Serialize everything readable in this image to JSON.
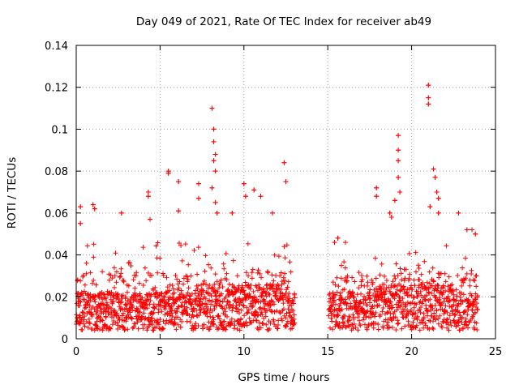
{
  "chart_data": {
    "type": "scatter",
    "title": "Day 049 of 2021, Rate Of TEC Index for receiver ab49",
    "xlabel": "GPS time / hours",
    "ylabel": "ROTI / TECUs",
    "xlim": [
      0,
      25
    ],
    "ylim": [
      0,
      0.14
    ],
    "x_ticks": [
      0,
      5,
      10,
      15,
      20,
      25
    ],
    "x_tick_labels": [
      "0",
      "5",
      "10",
      "15",
      "20",
      "25"
    ],
    "y_ticks": [
      0,
      0.02,
      0.04,
      0.06,
      0.08,
      0.1,
      0.12,
      0.14
    ],
    "y_tick_labels": [
      "0",
      "0.02",
      "0.04",
      "0.06",
      "0.08",
      "0.1",
      "0.12",
      "0.14"
    ],
    "grid": true,
    "marker": "+",
    "series": [
      {
        "name": "ROTI",
        "color": "#ff0000",
        "data_gap_hours": [
          13.05,
          15.05
        ],
        "notable_points": [
          {
            "x": 0.25,
            "y": 0.063
          },
          {
            "x": 0.25,
            "y": 0.055
          },
          {
            "x": 1.0,
            "y": 0.064
          },
          {
            "x": 1.1,
            "y": 0.062
          },
          {
            "x": 2.7,
            "y": 0.06
          },
          {
            "x": 4.3,
            "y": 0.07
          },
          {
            "x": 4.3,
            "y": 0.068
          },
          {
            "x": 4.4,
            "y": 0.057
          },
          {
            "x": 5.5,
            "y": 0.08
          },
          {
            "x": 5.5,
            "y": 0.079
          },
          {
            "x": 6.1,
            "y": 0.075
          },
          {
            "x": 6.1,
            "y": 0.061
          },
          {
            "x": 7.3,
            "y": 0.074
          },
          {
            "x": 7.3,
            "y": 0.067
          },
          {
            "x": 8.1,
            "y": 0.11
          },
          {
            "x": 8.2,
            "y": 0.1
          },
          {
            "x": 8.2,
            "y": 0.094
          },
          {
            "x": 8.3,
            "y": 0.088
          },
          {
            "x": 8.2,
            "y": 0.085
          },
          {
            "x": 8.3,
            "y": 0.08
          },
          {
            "x": 8.1,
            "y": 0.072
          },
          {
            "x": 8.3,
            "y": 0.065
          },
          {
            "x": 8.4,
            "y": 0.06
          },
          {
            "x": 9.3,
            "y": 0.06
          },
          {
            "x": 10.0,
            "y": 0.074
          },
          {
            "x": 10.1,
            "y": 0.068
          },
          {
            "x": 10.6,
            "y": 0.071
          },
          {
            "x": 11.0,
            "y": 0.068
          },
          {
            "x": 11.7,
            "y": 0.06
          },
          {
            "x": 12.4,
            "y": 0.084
          },
          {
            "x": 12.5,
            "y": 0.075
          },
          {
            "x": 15.4,
            "y": 0.046
          },
          {
            "x": 15.6,
            "y": 0.048
          },
          {
            "x": 17.9,
            "y": 0.072
          },
          {
            "x": 17.9,
            "y": 0.068
          },
          {
            "x": 18.7,
            "y": 0.06
          },
          {
            "x": 18.8,
            "y": 0.058
          },
          {
            "x": 19.2,
            "y": 0.097
          },
          {
            "x": 19.2,
            "y": 0.09
          },
          {
            "x": 19.2,
            "y": 0.085
          },
          {
            "x": 19.2,
            "y": 0.077
          },
          {
            "x": 19.3,
            "y": 0.07
          },
          {
            "x": 19.0,
            "y": 0.066
          },
          {
            "x": 21.0,
            "y": 0.121
          },
          {
            "x": 21.0,
            "y": 0.115
          },
          {
            "x": 21.0,
            "y": 0.112
          },
          {
            "x": 21.3,
            "y": 0.081
          },
          {
            "x": 21.4,
            "y": 0.077
          },
          {
            "x": 21.5,
            "y": 0.07
          },
          {
            "x": 21.6,
            "y": 0.067
          },
          {
            "x": 21.1,
            "y": 0.063
          },
          {
            "x": 21.6,
            "y": 0.06
          },
          {
            "x": 22.8,
            "y": 0.06
          },
          {
            "x": 23.3,
            "y": 0.052
          },
          {
            "x": 23.6,
            "y": 0.052
          },
          {
            "x": 23.8,
            "y": 0.05
          }
        ]
      }
    ]
  }
}
